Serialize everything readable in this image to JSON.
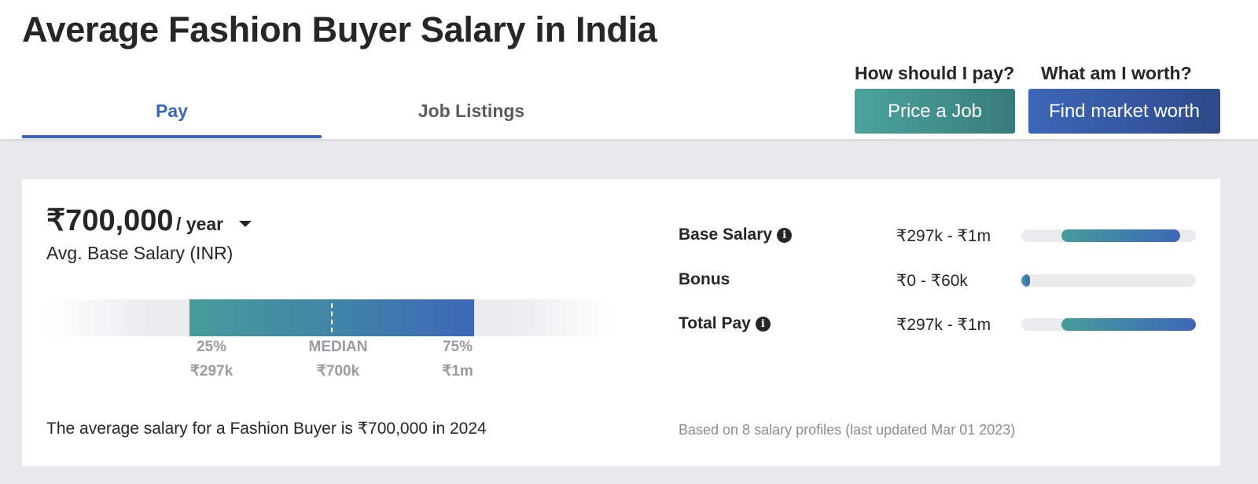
{
  "page": {
    "title": "Average Fashion Buyer Salary in India"
  },
  "tabs": [
    {
      "label": "Pay",
      "active": true
    },
    {
      "label": "Job Listings",
      "active": false
    }
  ],
  "cta": {
    "price": {
      "prompt": "How should I pay?",
      "button": "Price a Job"
    },
    "worth": {
      "prompt": "What am I worth?",
      "button": "Find market worth"
    }
  },
  "summary": {
    "amount": "₹700,000",
    "period": "/ year",
    "label": "Avg. Base Salary (INR)",
    "sentence": "The average salary for a Fashion Buyer is ₹700,000 in 2024"
  },
  "distribution": {
    "p25": {
      "label": "25%",
      "value": "₹297k"
    },
    "median": {
      "label": "MEDIAN",
      "value": "₹700k"
    },
    "p75": {
      "label": "75%",
      "value": "₹1m"
    }
  },
  "breakdown": [
    {
      "label": "Base Salary",
      "range": "₹297k - ₹1m",
      "has_info": true,
      "fill_start": 0.23,
      "fill_end": 0.91
    },
    {
      "label": "Bonus",
      "range": "₹0 - ₹60k",
      "has_info": false,
      "fill_start": 0.0,
      "fill_end": 0.05
    },
    {
      "label": "Total Pay",
      "range": "₹297k - ₹1m",
      "has_info": true,
      "fill_start": 0.23,
      "fill_end": 1.0
    }
  ],
  "footnote": "Based on 8 salary profiles (last updated Mar 01 2023)",
  "colors": {
    "accent_blue": "#3b66b8",
    "teal": "#479c9a",
    "background_gray": "#e9e9ec"
  }
}
